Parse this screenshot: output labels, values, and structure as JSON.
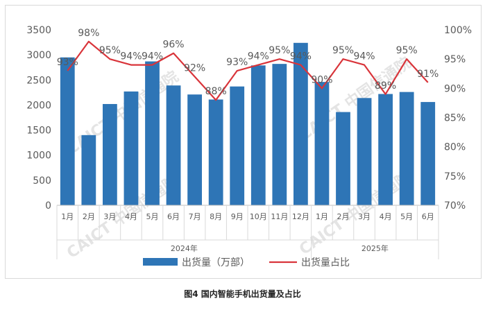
{
  "chart_data": {
    "type": "bar+line",
    "title": "",
    "categories": [
      "1月",
      "2月",
      "3月",
      "4月",
      "5月",
      "6月",
      "7月",
      "8月",
      "9月",
      "10月",
      "11月",
      "12月",
      "1月",
      "2月",
      "3月",
      "4月",
      "5月",
      "6月"
    ],
    "groups": [
      {
        "label": "2024年",
        "count": 12
      },
      {
        "label": "2025年",
        "count": 6
      }
    ],
    "series": [
      {
        "name": "出货量（万部）",
        "type": "bar",
        "axis": "left",
        "color": "#2e75b6",
        "values": [
          2950,
          1400,
          2020,
          2270,
          2870,
          2390,
          2210,
          2110,
          2370,
          2790,
          2820,
          3240,
          2460,
          1860,
          2140,
          2220,
          2260,
          2060
        ]
      },
      {
        "name": "出货量占比",
        "type": "line",
        "axis": "right",
        "color": "#d9343a",
        "values": [
          93,
          98,
          95,
          94,
          94,
          96,
          92,
          88,
          93,
          94,
          95,
          94,
          90,
          95,
          94,
          89,
          95,
          91
        ],
        "data_labels": [
          "93%",
          "98%",
          "95%",
          "94%",
          "94%",
          "96%",
          "92%",
          "88%",
          "93%",
          "94%",
          "95%",
          "94%",
          "90%",
          "95%",
          "94%",
          "89%",
          "95%",
          "91%"
        ]
      }
    ],
    "y_left": {
      "min": 0,
      "max": 3500,
      "ticks": [
        "0",
        "500",
        "1000",
        "1500",
        "2000",
        "2500",
        "3000",
        "3500"
      ]
    },
    "y_right": {
      "min": 70,
      "max": 100,
      "ticks": [
        "70%",
        "75%",
        "80%",
        "85%",
        "90%",
        "95%",
        "100%"
      ]
    },
    "grid": false,
    "legend_position": "bottom"
  },
  "watermark": "CAICT 中国信通院",
  "caption": "图4  国内智能手机出货量及占比"
}
